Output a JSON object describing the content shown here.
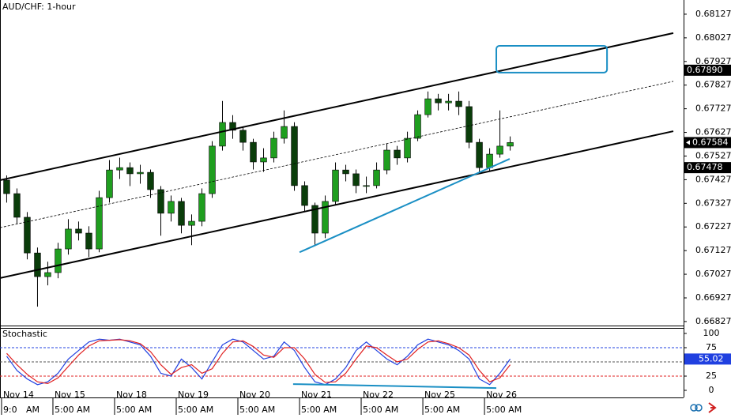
{
  "chart_data": [
    {
      "type": "candlestick",
      "title": "AUD/CHF: 1-hour",
      "x": [
        2,
        6,
        10,
        14,
        18,
        22,
        26,
        30,
        34,
        38,
        42,
        46,
        50,
        54,
        58,
        62,
        66,
        70,
        74,
        78,
        82,
        86,
        90,
        94,
        98,
        102,
        106,
        110,
        114,
        118,
        122,
        126,
        130,
        134,
        138,
        142,
        146,
        150,
        154,
        158,
        162,
        166,
        170,
        174,
        178,
        182,
        186,
        190,
        194,
        198
      ],
      "open": [
        0.67425,
        0.67368,
        0.67268,
        0.67117,
        0.67017,
        0.67034,
        0.67134,
        0.67218,
        0.67201,
        0.67134,
        0.67351,
        0.67468,
        0.67478,
        0.67452,
        0.67458,
        0.67385,
        0.67285,
        0.67335,
        0.67234,
        0.67251,
        0.67368,
        0.67569,
        0.67669,
        0.67636,
        0.67585,
        0.67502,
        0.67519,
        0.67602,
        0.67652,
        0.67402,
        0.67318,
        0.67201,
        0.67335,
        0.67468,
        0.67452,
        0.67402,
        0.67402,
        0.67468,
        0.67552,
        0.67519,
        0.67602,
        0.67702,
        0.67769,
        0.67752,
        0.67759,
        0.67736,
        0.67585,
        0.67478,
        0.67535,
        0.67569
      ],
      "high": [
        0.67445,
        0.6739,
        0.6729,
        0.6714,
        0.6708,
        0.6716,
        0.6726,
        0.6725,
        0.6723,
        0.6738,
        0.6751,
        0.6752,
        0.675,
        0.6749,
        0.6747,
        0.674,
        0.6736,
        0.6735,
        0.6728,
        0.6739,
        0.6759,
        0.6776,
        0.677,
        0.6765,
        0.676,
        0.6756,
        0.6763,
        0.6772,
        0.6767,
        0.6742,
        0.6733,
        0.6736,
        0.675,
        0.6749,
        0.6747,
        0.6744,
        0.675,
        0.6758,
        0.6757,
        0.6763,
        0.6772,
        0.678,
        0.6779,
        0.6779,
        0.678,
        0.6776,
        0.676,
        0.6756,
        0.6772,
        0.6761
      ],
      "low": [
        0.6733,
        0.6724,
        0.6709,
        0.6689,
        0.6698,
        0.6701,
        0.6711,
        0.6717,
        0.671,
        0.6712,
        0.6733,
        0.6743,
        0.674,
        0.6741,
        0.6735,
        0.6719,
        0.6725,
        0.672,
        0.6715,
        0.6723,
        0.6735,
        0.6755,
        0.676,
        0.6755,
        0.6747,
        0.6746,
        0.675,
        0.6758,
        0.6738,
        0.6729,
        0.67151,
        0.6718,
        0.6732,
        0.6742,
        0.6737,
        0.6737,
        0.6739,
        0.6745,
        0.6749,
        0.675,
        0.6759,
        0.6769,
        0.6772,
        0.6772,
        0.677,
        0.6756,
        0.6745,
        0.6746,
        0.6752,
        0.6755
      ],
      "close": [
        0.67368,
        0.67268,
        0.67117,
        0.67017,
        0.67034,
        0.67134,
        0.67218,
        0.67201,
        0.67134,
        0.67351,
        0.67468,
        0.67478,
        0.67452,
        0.67458,
        0.67385,
        0.67285,
        0.67335,
        0.67234,
        0.67251,
        0.67368,
        0.67569,
        0.67669,
        0.67636,
        0.67585,
        0.67502,
        0.67519,
        0.67602,
        0.67652,
        0.67402,
        0.67318,
        0.67201,
        0.67335,
        0.67468,
        0.67452,
        0.67402,
        0.67402,
        0.67468,
        0.67552,
        0.67519,
        0.67602,
        0.67702,
        0.67769,
        0.67752,
        0.67759,
        0.67736,
        0.67585,
        0.67478,
        0.67535,
        0.67569,
        0.67584
      ],
      "up_color": "#1f9e1f",
      "down_color": "#0a3d0a",
      "xlim": [
        -0.6,
        265.5
      ],
      "ylim": [
        0.6681,
        0.68187
      ],
      "yticks": [
        0.68127,
        0.68027,
        0.67927,
        0.67827,
        0.67727,
        0.67627,
        0.67527,
        0.67427,
        0.67327,
        0.67227,
        0.67127,
        0.67027,
        0.66927,
        0.66827
      ],
      "xticks": [
        {
          "value": 0,
          "label": [
            "Nov 14",
            "9:0",
            "AM"
          ]
        },
        {
          "value": 20,
          "label": [
            "Nov 15",
            "5:00 AM"
          ]
        },
        {
          "value": 44,
          "label": [
            "Nov 18",
            "5:00 AM"
          ]
        },
        {
          "value": 68,
          "label": [
            "Nov 19",
            "5:00 AM"
          ]
        },
        {
          "value": 92,
          "label": [
            "Nov 20",
            "5:00 AM"
          ]
        },
        {
          "value": 116,
          "label": [
            "Nov 21",
            "5:00 AM"
          ]
        },
        {
          "value": 140,
          "label": [
            "Nov 22",
            "5:00 AM"
          ]
        },
        {
          "value": 164,
          "label": [
            "Nov 25",
            "5:00 AM"
          ]
        },
        {
          "value": 188,
          "label": [
            "Nov 26",
            "5:00 AM"
          ]
        }
      ],
      "price_labels": [
        {
          "value": 0.6789,
          "label": "0.67890"
        },
        {
          "value": 0.67478,
          "label": "0.67478"
        }
      ],
      "lines": [
        {
          "x": [
            -0.6,
            261.5
          ],
          "y": [
            0.67425,
            0.68047
          ],
          "color": "#000000",
          "dash": false
        },
        {
          "x": [
            -0.6,
            261.5
          ],
          "y": [
            0.67224,
            0.67843
          ],
          "color": "#000000",
          "dash": true
        },
        {
          "x": [
            -0.6,
            261.5
          ],
          "y": [
            0.67011,
            0.67632
          ],
          "color": "#000000",
          "dash": false
        },
        {
          "x": [
            116,
            197.8
          ],
          "y": [
            0.6712,
            0.67515
          ],
          "color": "#1a8fc4",
          "dash": false
        }
      ],
      "rects": [
        {
          "x": [
            192.6,
            235.7
          ],
          "y": [
            0.67993,
            0.6788
          ],
          "color": "#1a8fc4"
        }
      ]
    },
    {
      "type": "line",
      "title": "Stochastic",
      "x": [
        2,
        6,
        10,
        14,
        18,
        22,
        26,
        30,
        34,
        38,
        42,
        46,
        50,
        54,
        58,
        62,
        66,
        70,
        74,
        78,
        82,
        86,
        90,
        94,
        98,
        102,
        106,
        110,
        114,
        118,
        122,
        126,
        130,
        134,
        138,
        142,
        146,
        150,
        154,
        158,
        162,
        166,
        170,
        174,
        178,
        182,
        186,
        190,
        194,
        198
      ],
      "series": [
        {
          "name": "%K",
          "color": "#2040e0",
          "values": [
            60,
            35,
            20,
            10,
            15,
            30,
            55,
            70,
            85,
            90,
            88,
            90,
            85,
            80,
            60,
            30,
            25,
            55,
            40,
            20,
            50,
            80,
            90,
            85,
            70,
            55,
            60,
            85,
            70,
            40,
            15,
            10,
            20,
            40,
            70,
            85,
            70,
            55,
            45,
            60,
            80,
            90,
            85,
            80,
            70,
            55,
            20,
            10,
            30,
            55.02
          ]
        },
        {
          "name": "%D",
          "color": "#e02020",
          "values": [
            65,
            45,
            28,
            15,
            12,
            22,
            42,
            62,
            78,
            87,
            88,
            89,
            87,
            82,
            68,
            45,
            28,
            40,
            45,
            30,
            38,
            65,
            85,
            87,
            77,
            62,
            58,
            75,
            75,
            55,
            28,
            14,
            15,
            30,
            55,
            78,
            75,
            62,
            50,
            55,
            72,
            85,
            87,
            82,
            75,
            62,
            35,
            15,
            22,
            45
          ]
        }
      ],
      "levels": [
        {
          "value": 75,
          "color": "#2040e0"
        },
        {
          "value": 50,
          "color": "#555555"
        },
        {
          "value": 25,
          "color": "#e02020"
        }
      ],
      "xlim": [
        -0.6,
        265.5
      ],
      "ylim": [
        -12.5,
        109.7
      ],
      "yticks": [
        100,
        75,
        25,
        0
      ],
      "lines": [
        {
          "x": [
            113.5,
            192.6
          ],
          "y": [
            11,
            4
          ],
          "color": "#1a8fc4",
          "dash": false
        }
      ]
    }
  ]
}
